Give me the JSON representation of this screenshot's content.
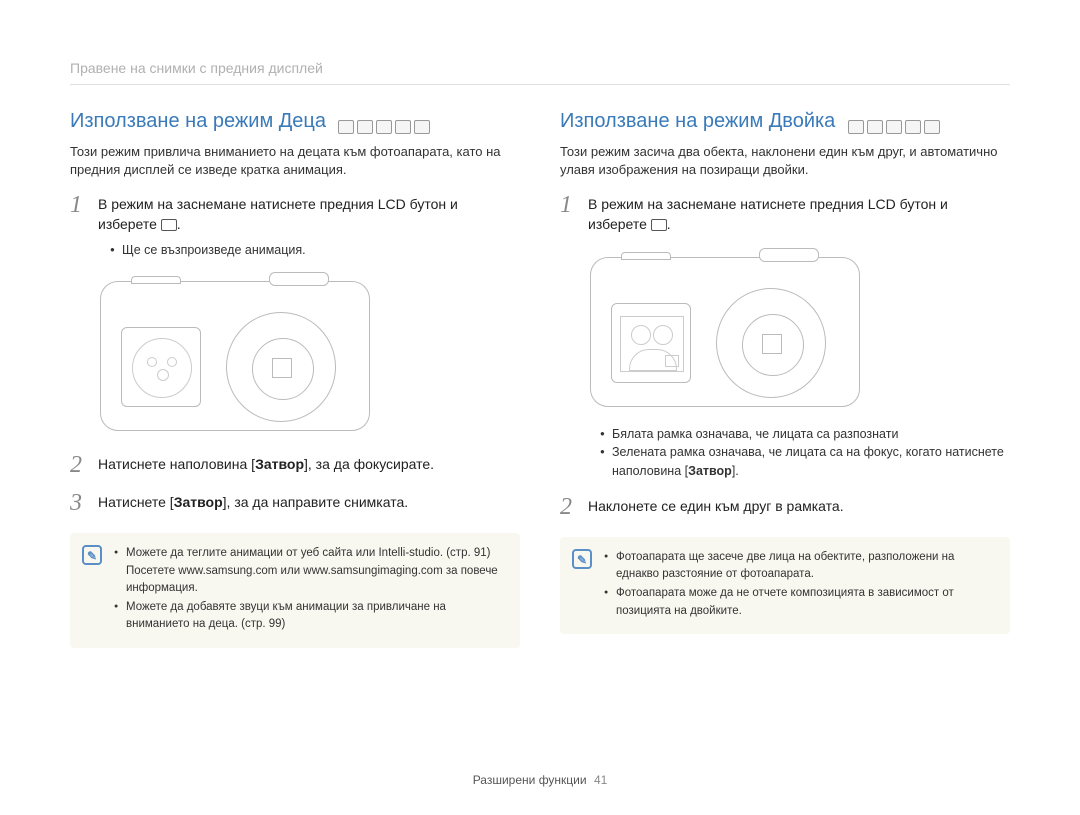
{
  "breadcrumb": "Правене на снимки с предния дисплей",
  "colors": {
    "heading": "#3a7ab8",
    "breadcrumb": "#b0b0b0",
    "note_bg": "#f9f8f0",
    "note_icon": "#5b8fc7",
    "line_art": "#bbbbbb"
  },
  "left": {
    "title": "Използване на режим Деца",
    "mode_icon_count": 5,
    "intro": "Този режим привлича вниманието на децата към фотоапарата, като на предния дисплей се изведе кратка анимация.",
    "steps": [
      {
        "num": "1",
        "text_before": "В режим на заснемане натиснете предния LCD бутон и изберете ",
        "has_inline_icon": true,
        "text_after": "."
      },
      {
        "num": "2",
        "text_before": "Натиснете наполовина [",
        "bold": "Затвор",
        "text_after": "], за да фокусирате."
      },
      {
        "num": "3",
        "text_before": "Натиснете [",
        "bold": "Затвор",
        "text_after": "], за да направите снимката."
      }
    ],
    "sub_bullets_after_step1": [
      "Ще се възпроизведе анимация."
    ],
    "notes": [
      "Можете да теглите анимации от уеб сайта или Intelli-studio. (стр. 91) Посетете www.samsung.com или www.samsungimaging.com за повече информация.",
      "Можете да добавяте звуци към анимации за привличане на вниманието на деца. (стр. 99)"
    ]
  },
  "right": {
    "title": "Използване на режим Двойка",
    "mode_icon_count": 5,
    "intro": "Този режим засича два обекта, наклонени един към друг, и автоматично улавя изображения на позиращи двойки.",
    "steps": [
      {
        "num": "1",
        "text_before": "В режим на заснемане натиснете предния LCD бутон и изберете ",
        "has_inline_icon": true,
        "text_after": "."
      },
      {
        "num": "2",
        "text_before": "Наклонете се един към друг в рамката.",
        "bold": "",
        "text_after": ""
      }
    ],
    "sub_bullets_after_illus": [
      "Бялата рамка означава, че лицата са разпознати",
      {
        "pre": "Зелената рамка означава, че лицата са на фокус, когато натиснете наполовина [",
        "bold": "Затвор",
        "post": "]."
      }
    ],
    "notes": [
      "Фотоапарата ще засече две лица на обектите, разположени на еднакво разстояние от фотоапарата.",
      "Фотоапарата може да не отчете композицията в зависимост от позицията на двойките."
    ]
  },
  "footer": {
    "label": "Разширени функции",
    "page": "41"
  },
  "note_icon_glyph": "✎"
}
